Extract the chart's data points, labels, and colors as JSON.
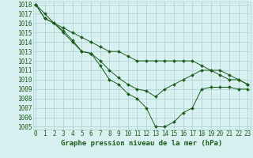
{
  "x": [
    0,
    1,
    2,
    3,
    4,
    5,
    6,
    7,
    8,
    9,
    10,
    11,
    12,
    13,
    14,
    15,
    16,
    17,
    18,
    19,
    20,
    21,
    22,
    23
  ],
  "series1": [
    1018,
    1017,
    1016,
    1015,
    1014,
    1013,
    1012.8,
    1011.5,
    1010,
    1009.5,
    1008.5,
    1008,
    1007,
    1005,
    1005,
    1005.5,
    1006.5,
    1007,
    1009,
    1009.2,
    1009.2,
    1009.2,
    1009,
    1009
  ],
  "series2": [
    1018,
    1016.5,
    1016,
    1015.2,
    1014.2,
    1013.0,
    1012.8,
    1012.0,
    1011.0,
    1010.2,
    1009.5,
    1009.0,
    1008.8,
    1008.2,
    1009.0,
    1009.5,
    1010.0,
    1010.5,
    1011.0,
    1011.0,
    1011.0,
    1010.5,
    1010.0,
    1009.5
  ],
  "series3": [
    1018,
    1016.5,
    1016,
    1015.5,
    1015,
    1014.5,
    1014,
    1013.5,
    1013,
    1013,
    1012.5,
    1012,
    1012,
    1012,
    1012,
    1012,
    1012,
    1012,
    1011.5,
    1011,
    1010.5,
    1010,
    1010,
    1009.5
  ],
  "line_color": "#1a5c1a",
  "marker": "D",
  "markersize": 2,
  "bg_color": "#d8f0f0",
  "grid_color": "#aacece",
  "text_color": "#1a5c1a",
  "xlabel": "Graphe pression niveau de la mer (hPa)",
  "ylim_min": 1005,
  "ylim_max": 1018,
  "xtick_labels": [
    "0",
    "1",
    "2",
    "3",
    "4",
    "5",
    "6",
    "7",
    "8",
    "9",
    "10",
    "11",
    "12",
    "13",
    "14",
    "15",
    "16",
    "17",
    "18",
    "19",
    "20",
    "21",
    "22",
    "23"
  ],
  "axis_fontsize": 5.5,
  "label_fontsize": 6.5
}
